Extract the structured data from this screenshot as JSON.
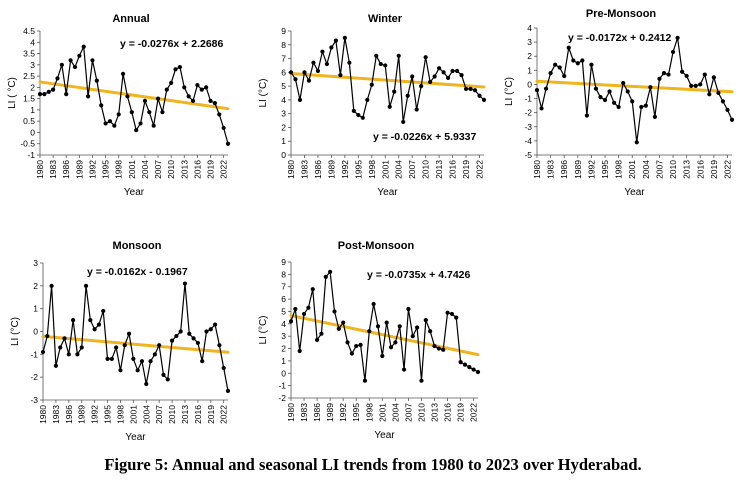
{
  "figure": {
    "caption": "Figure 5: Annual and seasonal LI trends from 1980 to 2023 over Hyderabad.",
    "colors": {
      "series": "#000000",
      "trend": "#f0b41c"
    }
  },
  "chart_data": [
    {
      "type": "line",
      "title": "Annual",
      "xlabel": "Year",
      "ylabel": "LI ( °C)",
      "x": [
        1980,
        1981,
        1982,
        1983,
        1984,
        1985,
        1986,
        1987,
        1988,
        1989,
        1990,
        1991,
        1992,
        1993,
        1994,
        1995,
        1996,
        1997,
        1998,
        1999,
        2000,
        2001,
        2002,
        2003,
        2004,
        2005,
        2006,
        2007,
        2008,
        2009,
        2010,
        2011,
        2012,
        2013,
        2014,
        2015,
        2016,
        2017,
        2018,
        2019,
        2020,
        2021,
        2022,
        2023
      ],
      "xticks": [
        "1980",
        "1983",
        "1986",
        "1989",
        "1992",
        "1995",
        "1998",
        "2001",
        "2004",
        "2007",
        "2010",
        "2013",
        "2016",
        "2019",
        "2022"
      ],
      "yticks": [
        "-1",
        "-0.5",
        "0",
        "0.5",
        "1",
        "1.5",
        "2",
        "2.5",
        "3",
        "3.5",
        "4",
        "4.5"
      ],
      "ylim": [
        -1,
        4.5
      ],
      "series": [
        {
          "values": [
            1.7,
            1.7,
            1.8,
            1.9,
            2.4,
            3.0,
            1.7,
            3.2,
            2.9,
            3.4,
            3.8,
            1.6,
            3.2,
            2.3,
            1.2,
            0.4,
            0.5,
            0.3,
            0.8,
            2.6,
            1.6,
            0.9,
            0.1,
            0.4,
            1.4,
            0.9,
            0.3,
            1.5,
            0.9,
            1.9,
            2.2,
            2.8,
            2.9,
            2.0,
            1.6,
            1.4,
            2.1,
            1.9,
            2.0,
            1.4,
            1.3,
            0.8,
            0.2,
            -0.5
          ]
        }
      ],
      "trendline": {
        "slope": -0.0276,
        "intercept": 2.2686,
        "equation": "y = -0.0276x + 2.2686"
      }
    },
    {
      "type": "line",
      "title": "Winter",
      "xlabel": "Year",
      "ylabel": "LI (°C)",
      "x": [
        1980,
        1981,
        1982,
        1983,
        1984,
        1985,
        1986,
        1987,
        1988,
        1989,
        1990,
        1991,
        1992,
        1993,
        1994,
        1995,
        1996,
        1997,
        1998,
        1999,
        2000,
        2001,
        2002,
        2003,
        2004,
        2005,
        2006,
        2007,
        2008,
        2009,
        2010,
        2011,
        2012,
        2013,
        2014,
        2015,
        2016,
        2017,
        2018,
        2019,
        2020,
        2021,
        2022,
        2023
      ],
      "xticks": [
        "1980",
        "1983",
        "1986",
        "1989",
        "1992",
        "1995",
        "1998",
        "2001",
        "2004",
        "2007",
        "2010",
        "2013",
        "2016",
        "2019",
        "2022"
      ],
      "yticks": [
        "0",
        "1",
        "2",
        "3",
        "4",
        "5",
        "6",
        "7",
        "8",
        "9"
      ],
      "ylim": [
        0,
        9
      ],
      "series": [
        {
          "values": [
            6.0,
            5.5,
            4.0,
            6.0,
            5.4,
            6.7,
            6.1,
            7.5,
            6.6,
            7.8,
            8.3,
            5.8,
            8.5,
            6.7,
            3.2,
            2.9,
            2.7,
            4.0,
            5.1,
            7.2,
            6.6,
            6.5,
            3.5,
            4.6,
            7.2,
            2.4,
            4.3,
            5.7,
            3.3,
            5.0,
            7.1,
            5.3,
            5.7,
            6.3,
            6.0,
            5.6,
            6.1,
            6.1,
            5.8,
            4.8,
            4.8,
            4.7,
            4.3,
            4.0
          ]
        }
      ],
      "trendline": {
        "slope": -0.0226,
        "intercept": 5.9337,
        "equation": "y = -0.0226x + 5.9337"
      }
    },
    {
      "type": "line",
      "title": "Pre-Monsoon",
      "xlabel": "Year",
      "ylabel": "LI (°C)",
      "x": [
        1980,
        1981,
        1982,
        1983,
        1984,
        1985,
        1986,
        1987,
        1988,
        1989,
        1990,
        1991,
        1992,
        1993,
        1994,
        1995,
        1996,
        1997,
        1998,
        1999,
        2000,
        2001,
        2002,
        2003,
        2004,
        2005,
        2006,
        2007,
        2008,
        2009,
        2010,
        2011,
        2012,
        2013,
        2014,
        2015,
        2016,
        2017,
        2018,
        2019,
        2020,
        2021,
        2022,
        2023
      ],
      "xticks": [
        "1980",
        "1983",
        "1986",
        "1989",
        "1992",
        "1995",
        "1998",
        "2001",
        "2004",
        "2007",
        "2010",
        "2013",
        "2016",
        "2019",
        "2022"
      ],
      "yticks": [
        "-5",
        "-4",
        "-3",
        "-2",
        "-1",
        "0",
        "1",
        "2",
        "3",
        "4"
      ],
      "ylim": [
        -5,
        4
      ],
      "series": [
        {
          "values": [
            -0.4,
            -1.7,
            -0.3,
            0.8,
            1.4,
            1.2,
            0.6,
            2.6,
            1.7,
            1.5,
            1.7,
            -2.2,
            1.4,
            -0.3,
            -0.9,
            -1.1,
            -0.5,
            -1.3,
            -1.6,
            0.1,
            -0.5,
            -1.2,
            -4.1,
            -1.6,
            -1.5,
            -0.2,
            -2.3,
            0.4,
            0.8,
            0.7,
            2.3,
            3.3,
            0.9,
            0.6,
            -0.1,
            -0.1,
            0.0,
            0.7,
            -0.7,
            0.5,
            -0.6,
            -1.2,
            -1.8,
            -2.5
          ]
        }
      ],
      "trendline": {
        "slope": -0.0172,
        "intercept": 0.2412,
        "equation": "y = -0.0172x + 0.2412"
      }
    },
    {
      "type": "line",
      "title": "Monsoon",
      "xlabel": "Year",
      "ylabel": "LI (°C)",
      "x": [
        1980,
        1981,
        1982,
        1983,
        1984,
        1985,
        1986,
        1987,
        1988,
        1989,
        1990,
        1991,
        1992,
        1993,
        1994,
        1995,
        1996,
        1997,
        1998,
        1999,
        2000,
        2001,
        2002,
        2003,
        2004,
        2005,
        2006,
        2007,
        2008,
        2009,
        2010,
        2011,
        2012,
        2013,
        2014,
        2015,
        2016,
        2017,
        2018,
        2019,
        2020,
        2021,
        2022,
        2023
      ],
      "xticks": [
        "1980",
        "1983",
        "1986",
        "1989",
        "1992",
        "1995",
        "1998",
        "2001",
        "2004",
        "2007",
        "2010",
        "2013",
        "2016",
        "2019",
        "2022"
      ],
      "yticks": [
        "-3",
        "-2",
        "-1",
        "0",
        "1",
        "2",
        "3"
      ],
      "ylim": [
        -3,
        3
      ],
      "series": [
        {
          "values": [
            -0.9,
            -0.2,
            2.0,
            -1.5,
            -0.7,
            -0.3,
            -1.0,
            0.5,
            -1.0,
            -0.7,
            2.0,
            0.5,
            0.1,
            0.3,
            0.9,
            -1.2,
            -1.2,
            -0.7,
            -1.7,
            -0.6,
            -0.1,
            -1.2,
            -1.7,
            -1.3,
            -2.3,
            -1.3,
            -1.0,
            -0.6,
            -1.9,
            -2.1,
            -0.4,
            -0.2,
            0.0,
            2.1,
            -0.1,
            -0.3,
            -0.5,
            -1.3,
            0.0,
            0.1,
            0.3,
            -0.6,
            -1.6,
            -2.6
          ]
        }
      ],
      "trendline": {
        "slope": -0.0162,
        "intercept": -0.1967,
        "equation": "y = -0.0162x - 0.1967"
      }
    },
    {
      "type": "line",
      "title": "Post-Monsoon",
      "xlabel": "Year",
      "ylabel": "LI (°C)",
      "x": [
        1980,
        1981,
        1982,
        1983,
        1984,
        1985,
        1986,
        1987,
        1988,
        1989,
        1990,
        1991,
        1992,
        1993,
        1994,
        1995,
        1996,
        1997,
        1998,
        1999,
        2000,
        2001,
        2002,
        2003,
        2004,
        2005,
        2006,
        2007,
        2008,
        2009,
        2010,
        2011,
        2012,
        2013,
        2014,
        2015,
        2016,
        2017,
        2018,
        2019,
        2020,
        2021,
        2022,
        2023
      ],
      "xticks": [
        "1980",
        "1983",
        "1986",
        "1989",
        "1992",
        "1995",
        "1998",
        "2001",
        "2004",
        "2007",
        "2010",
        "2013",
        "2016",
        "2019",
        "2022"
      ],
      "yticks": [
        "-2",
        "-1",
        "0",
        "1",
        "2",
        "3",
        "4",
        "5",
        "6",
        "7",
        "8",
        "9"
      ],
      "ylim": [
        -2,
        9
      ],
      "series": [
        {
          "values": [
            4.2,
            5.2,
            1.8,
            4.8,
            5.3,
            6.8,
            2.7,
            3.2,
            7.8,
            8.2,
            5.0,
            3.6,
            4.1,
            2.5,
            1.6,
            2.2,
            2.3,
            -0.6,
            3.4,
            5.6,
            3.8,
            1.4,
            4.1,
            2.1,
            2.5,
            3.8,
            0.3,
            5.2,
            3.0,
            3.7,
            -0.6,
            4.3,
            3.4,
            2.2,
            2.0,
            1.9,
            4.9,
            4.8,
            4.5,
            0.9,
            0.7,
            0.5,
            0.3,
            0.1
          ]
        }
      ],
      "trendline": {
        "slope": -0.0735,
        "intercept": 4.7426,
        "equation": "y = -0.0735x + 4.7426"
      }
    }
  ]
}
